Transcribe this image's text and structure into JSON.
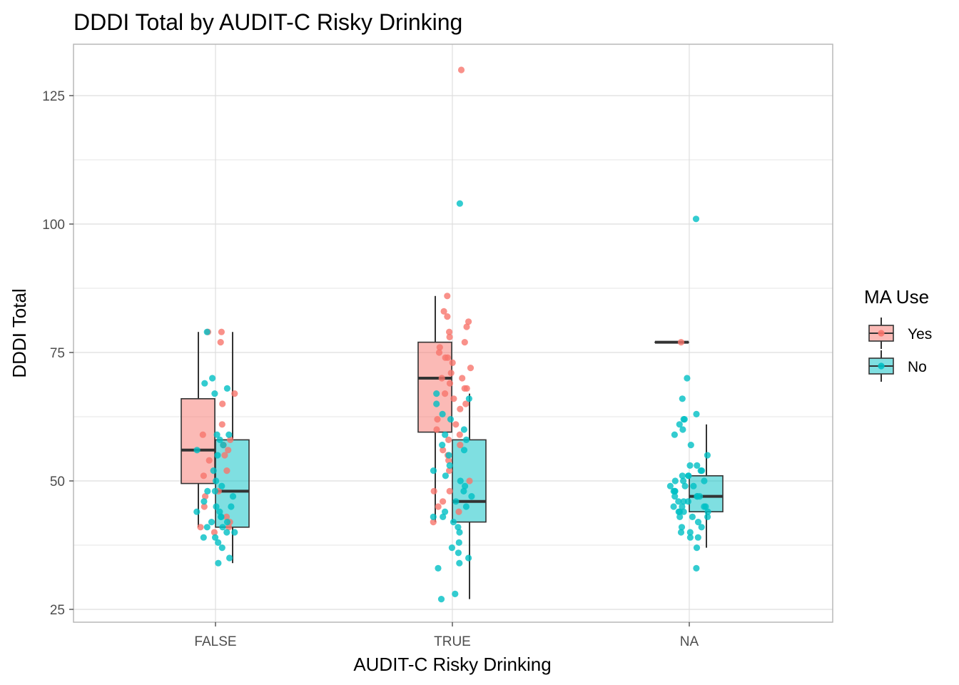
{
  "chart_data": {
    "type": "boxplot",
    "title": "DDDI Total by AUDIT-C Risky Drinking",
    "xlabel": "AUDIT-C Risky Drinking",
    "ylabel": "DDDI Total",
    "categories": [
      "FALSE",
      "TRUE",
      "NA"
    ],
    "y_ticks": [
      25,
      50,
      75,
      100,
      125
    ],
    "ylim": [
      22.5,
      135
    ],
    "grid": true,
    "legend": {
      "title": "MA Use",
      "placement": "right",
      "entries": [
        "Yes",
        "No"
      ]
    },
    "colors": {
      "Yes_fill": "#F8766D",
      "No_fill": "#00BFC4",
      "Yes_point": "#F8766D",
      "No_point": "#00BFC4",
      "box_line": "#333333",
      "grid": "#dedede",
      "panel_border": "#b3b3b3"
    },
    "series": [
      {
        "name": "Yes",
        "boxes": [
          {
            "category": "FALSE",
            "lower_whisker": 41,
            "q1": 49.5,
            "median": 56,
            "q3": 66,
            "upper_whisker": 79
          },
          {
            "category": "TRUE",
            "lower_whisker": 42,
            "q1": 59.5,
            "median": 70,
            "q3": 77,
            "upper_whisker": 86
          },
          {
            "category": "NA",
            "lower_whisker": 77,
            "q1": 77,
            "median": 77,
            "q3": 77,
            "upper_whisker": 77
          }
        ],
        "points": [
          {
            "category": "FALSE",
            "values": [
              79,
              79,
              77,
              67,
              65,
              61,
              59,
              58,
              57,
              56,
              55,
              54,
              52,
              51,
              48,
              47,
              45,
              43,
              42,
              41,
              41,
              40
            ]
          },
          {
            "category": "TRUE",
            "values": [
              130,
              86,
              83,
              82,
              81,
              80,
              79,
              78,
              77,
              76,
              75,
              74,
              74,
              73,
              72,
              71,
              70,
              70,
              69,
              68,
              68,
              67,
              66,
              65,
              64,
              62,
              61,
              60,
              59,
              58,
              57,
              56,
              55,
              54,
              52,
              50,
              48,
              48,
              46,
              45,
              44,
              42
            ]
          },
          {
            "category": "NA",
            "values": [
              77
            ]
          }
        ]
      },
      {
        "name": "No",
        "boxes": [
          {
            "category": "FALSE",
            "lower_whisker": 34,
            "q1": 41,
            "median": 48,
            "q3": 58,
            "upper_whisker": 79
          },
          {
            "category": "TRUE",
            "lower_whisker": 27,
            "q1": 42,
            "median": 46,
            "q3": 58,
            "upper_whisker": 67
          },
          {
            "category": "NA",
            "lower_whisker": 37,
            "q1": 44,
            "median": 47,
            "q3": 51,
            "upper_whisker": 61
          }
        ],
        "points": [
          {
            "category": "FALSE",
            "values": [
              79,
              70,
              69,
              68,
              67,
              59,
              59,
              58,
              57,
              56,
              55,
              52,
              50,
              49,
              48,
              48,
              47,
              46,
              45,
              45,
              44,
              44,
              43,
              43,
              42,
              42,
              41,
              41,
              40,
              40,
              39,
              39,
              38,
              37,
              35,
              34
            ]
          },
          {
            "category": "TRUE",
            "values": [
              104,
              67,
              66,
              65,
              63,
              62,
              60,
              59,
              58,
              57,
              56,
              55,
              53,
              52,
              51,
              50,
              49,
              48,
              47,
              46,
              45,
              44,
              43,
              43,
              42,
              41,
              40,
              38,
              37,
              36,
              35,
              34,
              33,
              28,
              27
            ]
          },
          {
            "category": "NA",
            "values": [
              101,
              70,
              66,
              63,
              62,
              62,
              61,
              60,
              59,
              57,
              55,
              53,
              53,
              52,
              52,
              51,
              51,
              51,
              50,
              50,
              50,
              49,
              49,
              49,
              48,
              48,
              48,
              47,
              47,
              47,
              47,
              46,
              46,
              46,
              45,
              45,
              45,
              45,
              44,
              44,
              44,
              44,
              43,
              43,
              43,
              42,
              41,
              41,
              40,
              40,
              39,
              39,
              37,
              33
            ]
          }
        ]
      }
    ]
  }
}
